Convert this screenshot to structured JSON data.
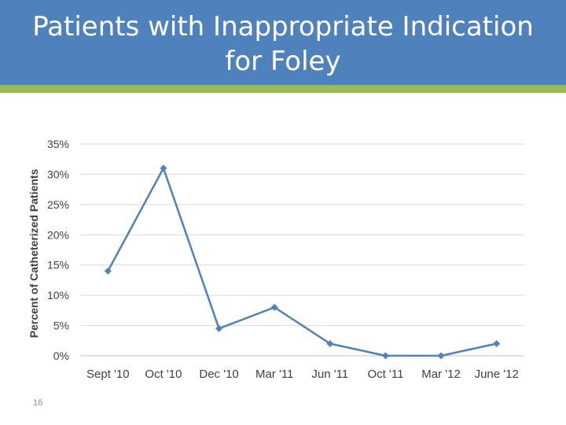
{
  "slide": {
    "title": "Patients with Inappropriate Indication\nfor Foley",
    "number": "16",
    "header_color": "#4f81bd",
    "accent_color": "#9bbb59"
  },
  "chart_data": {
    "type": "line",
    "title": "",
    "xlabel": "",
    "ylabel": "Percent of Catheterized Patients",
    "categories": [
      "Sept '10",
      "Oct '10",
      "Dec '10",
      "Mar '11",
      "Jun '11",
      "Oct '11",
      "Mar '12",
      "June '12"
    ],
    "series": [
      {
        "values": [
          14,
          31,
          4.5,
          8,
          2,
          0,
          0,
          2
        ],
        "color": "#4f81bd"
      }
    ],
    "y_ticks": [
      "0%",
      "5%",
      "10%",
      "15%",
      "20%",
      "25%",
      "30%",
      "35%"
    ],
    "ylim": [
      0,
      35
    ],
    "y_step": 5,
    "grid": true,
    "legend": "none",
    "marker": "diamond"
  }
}
